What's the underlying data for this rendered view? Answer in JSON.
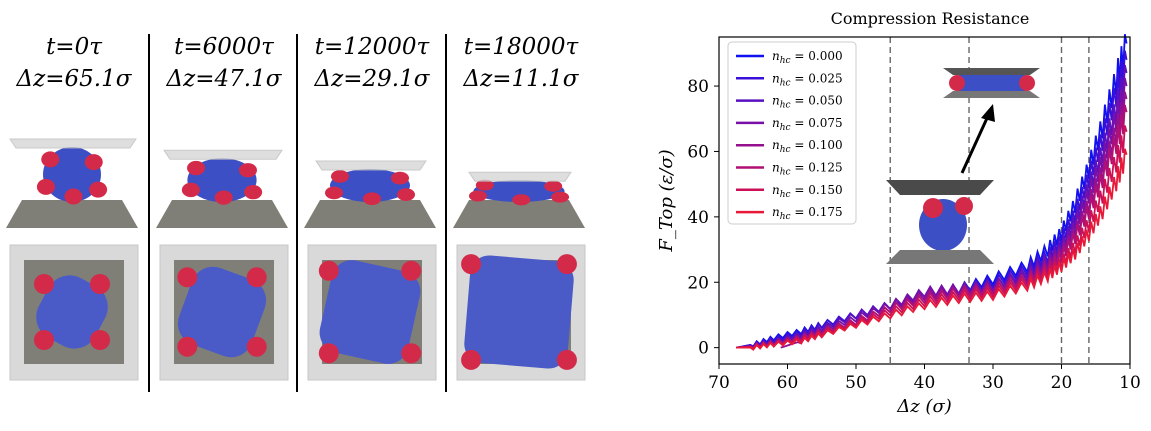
{
  "snapshots": [
    {
      "time": "t=0τ",
      "dz": "Δz=65.1σ",
      "squash": 0.0
    },
    {
      "time": "t=6000τ",
      "dz": "Δz=47.1σ",
      "squash": 0.28
    },
    {
      "time": "t=12000τ",
      "dz": "Δz=29.1σ",
      "squash": 0.55
    },
    {
      "time": "t=18000τ",
      "dz": "Δz=11.1σ",
      "squash": 0.83
    }
  ],
  "colors": {
    "vesicle": "#3d4fc4",
    "particle": "#d42a4a",
    "plate_top": "#d6d6d6",
    "plate_bottom": "#7f7f78",
    "dashed": "#666666"
  },
  "chart_data": {
    "type": "line",
    "title": "Compression Resistance",
    "xlabel": "Δz (σ)",
    "ylabel": "F_Top (ε/σ)",
    "xlim": [
      70,
      10
    ],
    "ylim": [
      -5,
      95
    ],
    "x_ticks": [
      70,
      60,
      50,
      40,
      30,
      20,
      10
    ],
    "y_ticks": [
      0,
      20,
      40,
      60,
      80
    ],
    "vlines": [
      45,
      33.5,
      20,
      16
    ],
    "legend_position": "upper-left",
    "grid": false,
    "series": [
      {
        "name": "n_hc = 0.000",
        "label_main": "n",
        "label_sub": "hc",
        "label_val": " = 0.000",
        "color": "#1010f0",
        "x": [
          67.5,
          65,
          62,
          58,
          55,
          50,
          45,
          40,
          35,
          30,
          25,
          22,
          20,
          18,
          16,
          14,
          12,
          10.5
        ],
        "y": [
          0,
          1,
          3,
          5,
          7,
          10,
          13,
          16,
          18,
          21,
          25,
          30,
          35,
          44,
          55,
          68,
          82,
          93
        ]
      },
      {
        "name": "n_hc = 0.025",
        "label_main": "n",
        "label_sub": "hc",
        "label_val": " = 0.025",
        "color": "#3a10d8",
        "x": [
          67.5,
          65,
          62,
          58,
          55,
          50,
          45,
          40,
          35,
          30,
          25,
          22,
          20,
          18,
          16,
          14,
          12,
          10.5
        ],
        "y": [
          0,
          1,
          2.5,
          4.5,
          7,
          10,
          13,
          16,
          18,
          20,
          24,
          28,
          33,
          41,
          52,
          64,
          78,
          88
        ]
      },
      {
        "name": "n_hc = 0.050",
        "label_main": "n",
        "label_sub": "hc",
        "label_val": " = 0.050",
        "color": "#5a10c0",
        "x": [
          67.5,
          65,
          62,
          58,
          55,
          50,
          45,
          40,
          35,
          30,
          25,
          22,
          20,
          18,
          16,
          14,
          12,
          10.5
        ],
        "y": [
          0,
          0.5,
          2,
          4,
          6,
          10,
          13,
          17,
          18,
          19,
          23,
          27,
          31,
          39,
          49,
          60,
          73,
          84
        ]
      },
      {
        "name": "n_hc = 0.075",
        "label_main": "n",
        "label_sub": "hc",
        "label_val": " = 0.075",
        "color": "#7810a8",
        "x": [
          67.5,
          65,
          62,
          58,
          55,
          50,
          45,
          40,
          35,
          30,
          25,
          22,
          20,
          18,
          16,
          14,
          12,
          10.5
        ],
        "y": [
          0,
          0.5,
          1.5,
          3.5,
          5.5,
          9,
          13,
          17,
          18,
          19,
          22,
          26,
          30,
          37,
          47,
          57,
          70,
          80
        ]
      },
      {
        "name": "n_hc = 0.100",
        "label_main": "n",
        "label_sub": "hc",
        "label_val": " = 0.100",
        "color": "#95108f",
        "x": [
          61,
          58,
          55,
          50,
          45,
          40,
          35,
          30,
          25,
          22,
          20,
          18,
          16,
          14,
          12,
          10.5
        ],
        "y": [
          0,
          2,
          4,
          8,
          12,
          16,
          17,
          18,
          21,
          25,
          29,
          35,
          44,
          54,
          66,
          76
        ]
      },
      {
        "name": "n_hc = 0.125",
        "label_main": "n",
        "label_sub": "hc",
        "label_val": " = 0.125",
        "color": "#b01075",
        "x": [
          67.5,
          65,
          62,
          58,
          55,
          50,
          45,
          40,
          35,
          30,
          25,
          22,
          20,
          18,
          16,
          14,
          12,
          10.5
        ],
        "y": [
          0,
          0.5,
          1.5,
          3,
          5,
          8,
          12,
          15,
          17,
          18,
          21,
          24,
          28,
          34,
          42,
          52,
          63,
          72
        ]
      },
      {
        "name": "n_hc = 0.150",
        "label_main": "n",
        "label_sub": "hc",
        "label_val": " = 0.150",
        "color": "#cc1058",
        "x": [
          67.5,
          65,
          62,
          58,
          55,
          50,
          45,
          40,
          35,
          30,
          25,
          22,
          20,
          18,
          16,
          14,
          12,
          10.5
        ],
        "y": [
          0,
          0.5,
          1,
          2.5,
          4.5,
          7.5,
          11,
          14,
          16,
          17,
          20,
          23,
          26,
          31,
          38,
          47,
          57,
          66
        ]
      },
      {
        "name": "n_hc = 0.175",
        "label_main": "n",
        "label_sub": "hc",
        "label_val": " = 0.175",
        "color": "#e81838",
        "x": [
          67.5,
          65,
          62,
          58,
          55,
          50,
          45,
          40,
          35,
          30,
          25,
          22,
          20,
          18,
          16,
          14,
          12,
          10.5
        ],
        "y": [
          0,
          0,
          1,
          2,
          4,
          7,
          10,
          13,
          15,
          16,
          19,
          22,
          25,
          29,
          35,
          42,
          51,
          59
        ]
      }
    ]
  }
}
